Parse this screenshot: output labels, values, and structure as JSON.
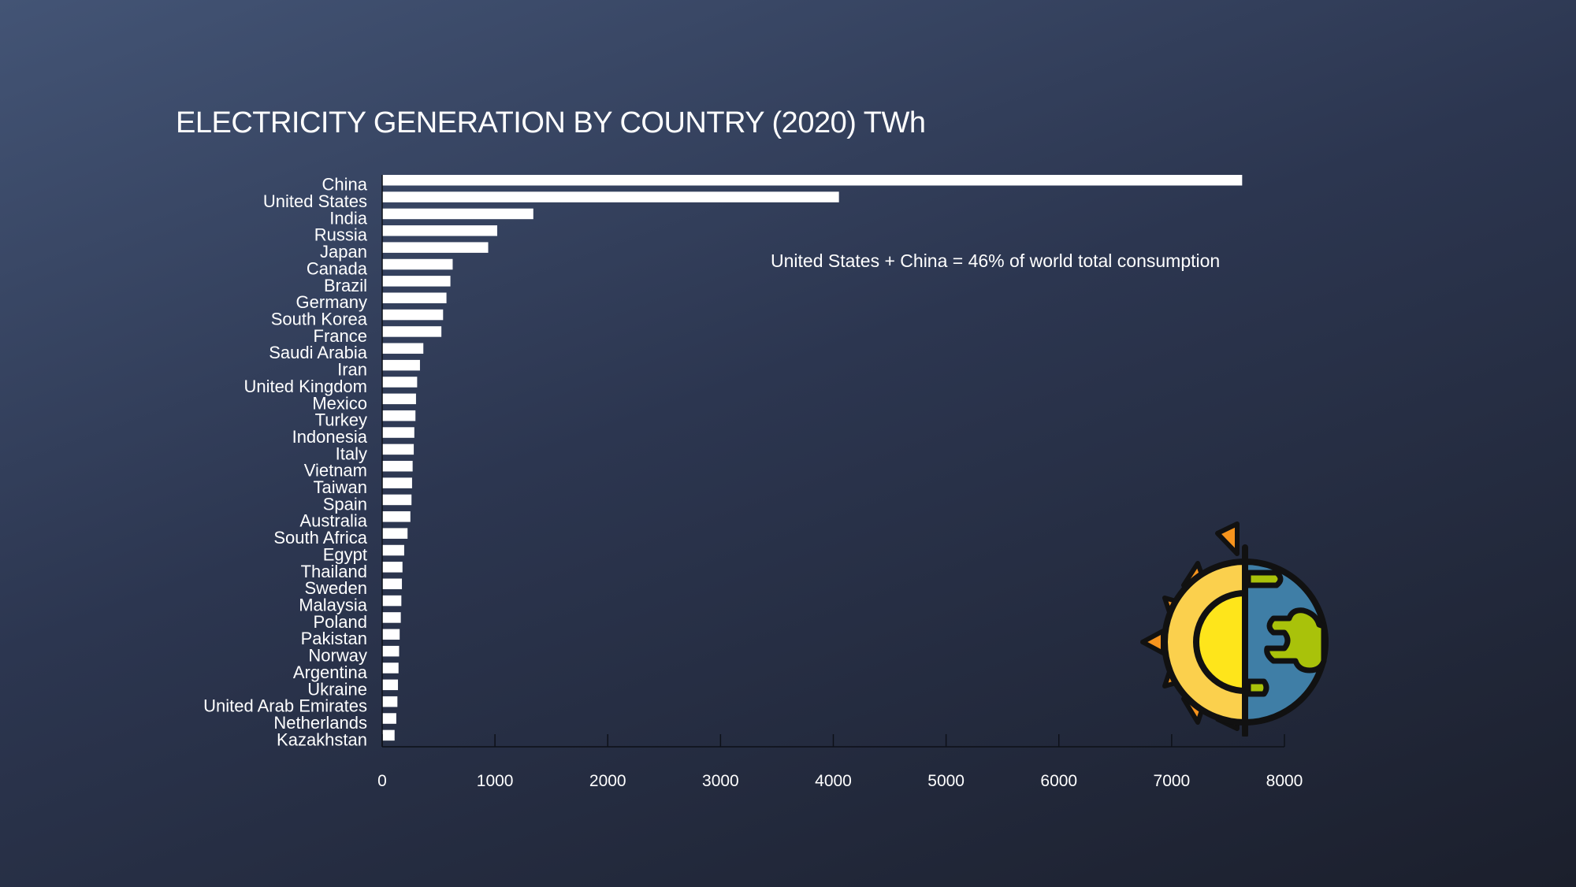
{
  "colors": {
    "bar": "#ffffff",
    "text": "#ffffff",
    "axis": "#0d1018",
    "sun_ray": "#f7941d",
    "sun_outer": "#fbd04d",
    "sun_inner": "#fee51b",
    "earth_ocean": "#3f7ea6",
    "earth_land": "#a9c20a",
    "outline": "#111111"
  },
  "icons": {
    "emblem": "sun-earth-icon"
  },
  "chart_data": {
    "type": "bar",
    "orientation": "horizontal",
    "title": "ELECTRICITY GENERATION BY COUNTRY (2020) TWh",
    "annotation": "United States + China = 46% of world total consumption",
    "xlabel": "",
    "ylabel": "",
    "xlim": [
      0,
      8000
    ],
    "xticks": [
      0,
      1000,
      2000,
      3000,
      4000,
      5000,
      6000,
      7000,
      8000
    ],
    "grid": false,
    "categories": [
      "China",
      "United States",
      "India",
      "Russia",
      "Japan",
      "Canada",
      "Brazil",
      "Germany",
      "South Korea",
      "France",
      "Saudi Arabia",
      "Iran",
      "United Kingdom",
      "Mexico",
      "Turkey",
      "Indonesia",
      "Italy",
      "Vietnam",
      "Taiwan",
      "Spain",
      "Australia",
      "South Africa",
      "Egypt",
      "Thailand",
      "Sweden",
      "Malaysia",
      "Poland",
      "Pakistan",
      "Norway",
      "Argentina",
      "Ukraine",
      "United Arab Emirates",
      "Netherlands",
      "Kazakhstan"
    ],
    "values": [
      7625,
      4050,
      1340,
      1020,
      940,
      625,
      605,
      570,
      540,
      525,
      365,
      335,
      310,
      300,
      295,
      285,
      280,
      270,
      265,
      260,
      250,
      225,
      195,
      180,
      175,
      170,
      165,
      155,
      150,
      145,
      140,
      135,
      125,
      110
    ]
  }
}
